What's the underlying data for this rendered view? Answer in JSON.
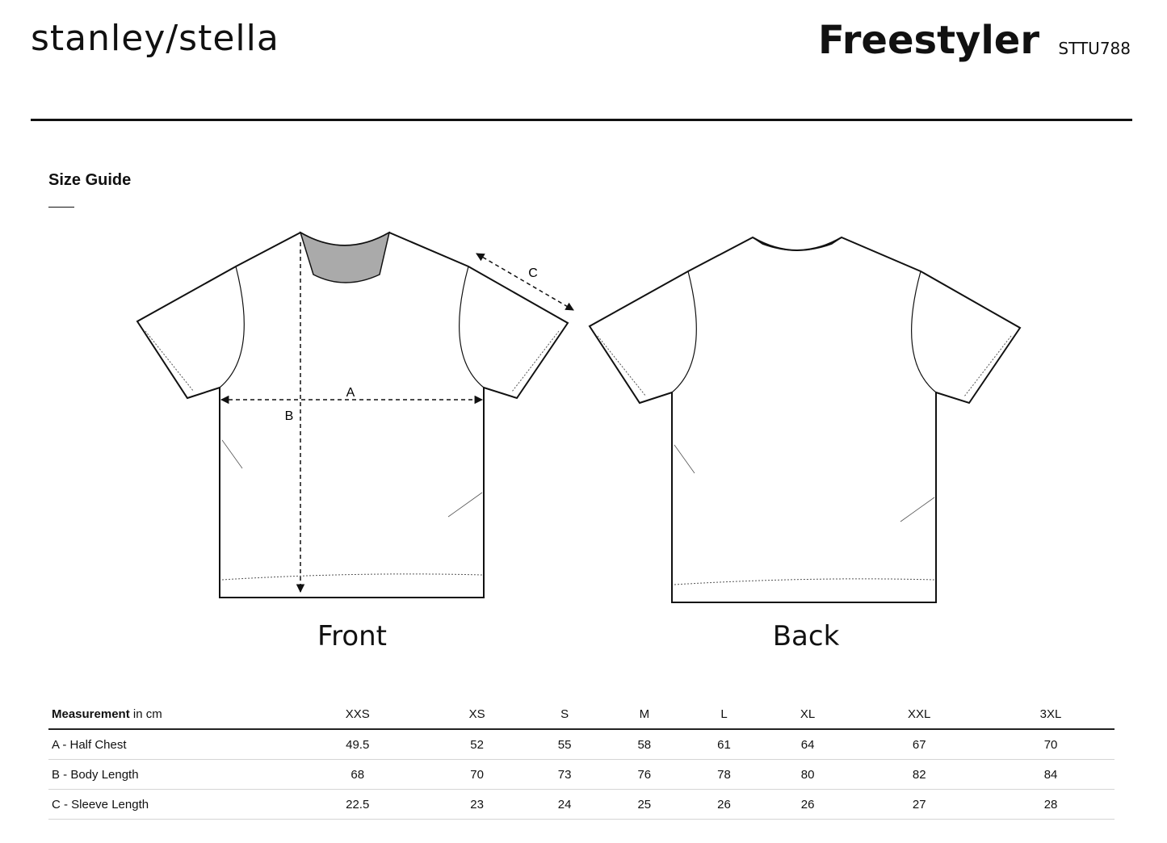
{
  "header": {
    "brand": "stanley/stella",
    "product": "Freestyler",
    "code": "STTU788"
  },
  "section": {
    "title": "Size Guide"
  },
  "diagram": {
    "labels": {
      "a": "A",
      "b": "B",
      "c": "C"
    },
    "front": "Front",
    "back": "Back"
  },
  "table": {
    "header_bold": "Measurement",
    "header_unit": " in cm",
    "sizes": [
      "XXS",
      "XS",
      "S",
      "M",
      "L",
      "XL",
      "XXL",
      "3XL"
    ],
    "rows": [
      {
        "label": "A - Half Chest",
        "values": [
          "49.5",
          "52",
          "55",
          "58",
          "61",
          "64",
          "67",
          "70"
        ]
      },
      {
        "label": "B - Body Length",
        "values": [
          "68",
          "70",
          "73",
          "76",
          "78",
          "80",
          "82",
          "84"
        ]
      },
      {
        "label": "C - Sleeve Length",
        "values": [
          "22.5",
          "23",
          "24",
          "25",
          "26",
          "26",
          "27",
          "28"
        ]
      }
    ]
  }
}
